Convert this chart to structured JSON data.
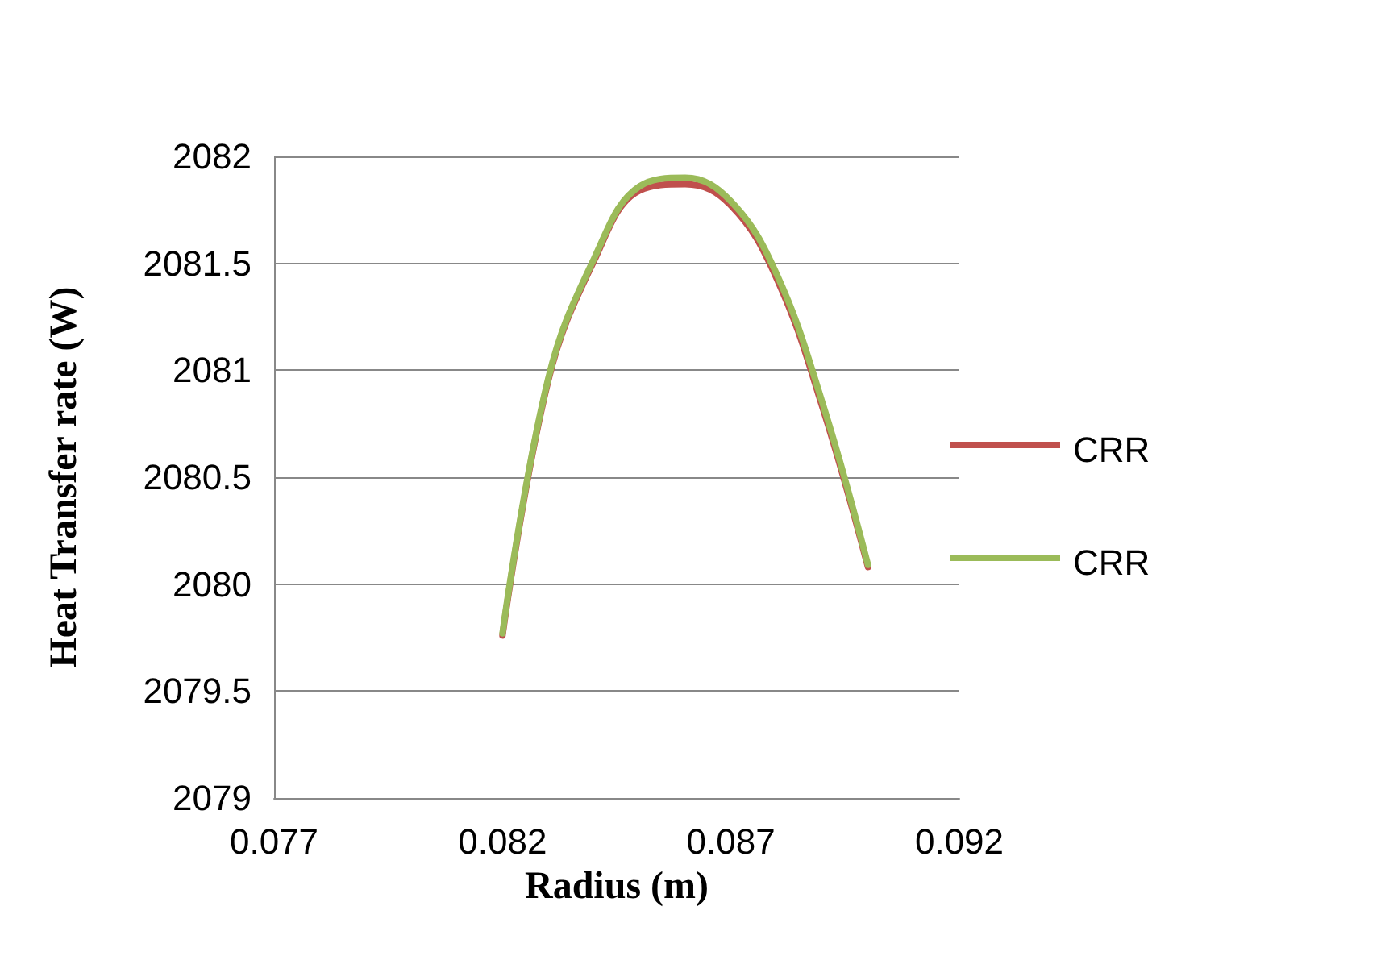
{
  "chart_data": {
    "type": "line",
    "xlabel": "Radius (m)",
    "ylabel": "Heat Transfer rate (W)",
    "x": [
      0.082,
      0.083,
      0.084,
      0.085,
      0.086,
      0.087,
      0.088,
      0.089,
      0.09
    ],
    "series": [
      {
        "name": "CRR",
        "color": "#c0504d",
        "values": [
          2079.76,
          2080.95,
          2081.51,
          2081.84,
          2081.87,
          2081.77,
          2081.43,
          2080.83,
          2080.08
        ]
      },
      {
        "name": "CRR",
        "color": "#9bbb59",
        "values": [
          2079.77,
          2080.96,
          2081.52,
          2081.86,
          2081.9,
          2081.79,
          2081.45,
          2080.85,
          2080.09
        ]
      }
    ],
    "xlim": [
      0.077,
      0.092
    ],
    "xticks": [
      0.077,
      0.082,
      0.087,
      0.092
    ],
    "ylim": [
      2079,
      2082
    ],
    "yticks": [
      2079,
      2079.5,
      2080,
      2080.5,
      2081,
      2081.5,
      2082
    ],
    "grid": "y",
    "legend": "right",
    "marker": "none",
    "line_style": "solid"
  }
}
